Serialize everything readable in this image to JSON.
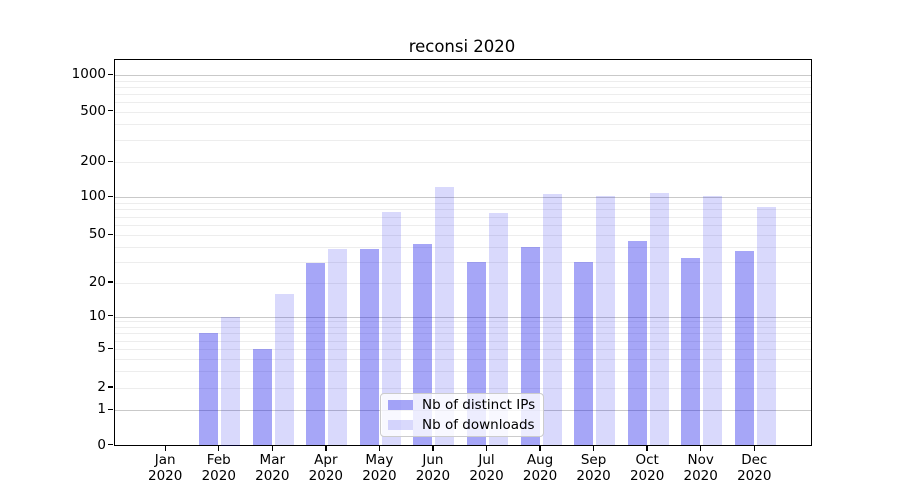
{
  "title": "reconsi 2020",
  "legend": {
    "items": [
      {
        "label": "Nb of distinct IPs"
      },
      {
        "label": "Nb of downloads"
      }
    ]
  },
  "y_axis": {
    "tick_values": [
      0,
      1,
      2,
      5,
      10,
      20,
      50,
      100,
      200,
      500,
      1000
    ],
    "tick_labels": [
      "0",
      "1",
      "2",
      "5",
      "10",
      "20",
      "50",
      "100",
      "200",
      "500",
      "1000"
    ],
    "major_gridlines": [
      1,
      10,
      100,
      1000
    ],
    "minor_gridlines": [
      2,
      3,
      4,
      5,
      6,
      7,
      8,
      9,
      20,
      30,
      40,
      50,
      60,
      70,
      80,
      90,
      200,
      300,
      400,
      500,
      600,
      700,
      800,
      900
    ]
  },
  "x_axis": {
    "categories": [
      {
        "line1": "Jan",
        "line2": "2020"
      },
      {
        "line1": "Feb",
        "line2": "2020"
      },
      {
        "line1": "Mar",
        "line2": "2020"
      },
      {
        "line1": "Apr",
        "line2": "2020"
      },
      {
        "line1": "May",
        "line2": "2020"
      },
      {
        "line1": "Jun",
        "line2": "2020"
      },
      {
        "line1": "Jul",
        "line2": "2020"
      },
      {
        "line1": "Aug",
        "line2": "2020"
      },
      {
        "line1": "Sep",
        "line2": "2020"
      },
      {
        "line1": "Oct",
        "line2": "2020"
      },
      {
        "line1": "Nov",
        "line2": "2020"
      },
      {
        "line1": "Dec",
        "line2": "2020"
      }
    ]
  },
  "chart_data": {
    "type": "bar",
    "title": "reconsi 2020",
    "xlabel": "",
    "ylabel": "",
    "yscale": "symlog",
    "ylim": [
      0,
      1330
    ],
    "grid": true,
    "legend_position": "lower center",
    "categories": [
      "Jan 2020",
      "Feb 2020",
      "Mar 2020",
      "Apr 2020",
      "May 2020",
      "Jun 2020",
      "Jul 2020",
      "Aug 2020",
      "Sep 2020",
      "Oct 2020",
      "Nov 2020",
      "Dec 2020"
    ],
    "series": [
      {
        "name": "Nb of distinct IPs",
        "slug": "distinct-ips",
        "fill": "rgba(20,20,235,0.38)",
        "color_on_white": "#a5a5f2",
        "values": [
          0,
          7,
          5,
          29,
          38,
          42,
          30,
          40,
          30,
          45,
          32,
          37
        ]
      },
      {
        "name": "Nb of downloads",
        "slug": "downloads",
        "fill": "rgba(20,20,235,0.16)",
        "color_on_white": "#d9d9fb",
        "values": [
          0,
          10,
          16,
          38,
          76,
          122,
          75,
          106,
          103,
          109,
          102,
          83
        ]
      }
    ]
  },
  "colors": {
    "bar_base": "#1414eb",
    "major_grid": "#c9c9c9",
    "minor_grid": "#ededed",
    "axis": "#000000",
    "legend_border": "#cccccc",
    "text": "#000000"
  }
}
